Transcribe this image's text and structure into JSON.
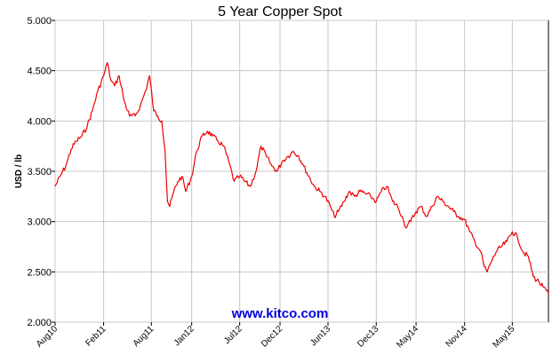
{
  "chart_data": {
    "type": "line",
    "title": "5 Year Copper Spot",
    "ylabel": "USD / lb",
    "xlabel": "",
    "ylim": [
      2.0,
      5.0
    ],
    "xlim": [
      "2010-08-01",
      "2015-09-15"
    ],
    "yticks": [
      "2.000",
      "2.500",
      "3.000",
      "3.500",
      "4.000",
      "4.500",
      "5.000"
    ],
    "ytick_values": [
      2.0,
      2.5,
      3.0,
      3.5,
      4.0,
      4.5,
      5.0
    ],
    "xticks": [
      {
        "label": "Aug10",
        "date": "2010-08-01"
      },
      {
        "label": "Feb11",
        "date": "2011-02-01"
      },
      {
        "label": "Aug11",
        "date": "2011-08-01"
      },
      {
        "label": "Jan12",
        "date": "2012-01-01"
      },
      {
        "label": "Jul12",
        "date": "2012-07-01"
      },
      {
        "label": "Dec12",
        "date": "2012-12-01"
      },
      {
        "label": "Jun13",
        "date": "2013-06-01"
      },
      {
        "label": "Dec13",
        "date": "2013-12-01"
      },
      {
        "label": "May14",
        "date": "2014-05-01"
      },
      {
        "label": "Nov14",
        "date": "2014-11-01"
      },
      {
        "label": "May15",
        "date": "2015-05-01"
      }
    ],
    "grid": true,
    "watermark": "www.kitco.com",
    "series": [
      {
        "color": "#ee0000",
        "x": [
          "2010-08-01",
          "2010-08-20",
          "2010-09-10",
          "2010-10-01",
          "2010-10-20",
          "2010-11-10",
          "2010-12-01",
          "2010-12-20",
          "2011-01-10",
          "2011-02-01",
          "2011-02-15",
          "2011-03-01",
          "2011-03-15",
          "2011-04-01",
          "2011-04-20",
          "2011-05-10",
          "2011-06-01",
          "2011-06-20",
          "2011-07-10",
          "2011-07-25",
          "2011-08-10",
          "2011-08-25",
          "2011-09-10",
          "2011-09-22",
          "2011-10-01",
          "2011-10-10",
          "2011-10-25",
          "2011-11-10",
          "2011-11-25",
          "2011-12-10",
          "2012-01-01",
          "2012-01-20",
          "2012-02-10",
          "2012-03-01",
          "2012-03-20",
          "2012-04-10",
          "2012-05-01",
          "2012-05-20",
          "2012-06-10",
          "2012-07-01",
          "2012-07-20",
          "2012-08-10",
          "2012-09-01",
          "2012-09-20",
          "2012-10-10",
          "2012-11-01",
          "2012-11-20",
          "2012-12-10",
          "2013-01-01",
          "2013-01-20",
          "2013-02-10",
          "2013-03-01",
          "2013-03-20",
          "2013-04-10",
          "2013-05-01",
          "2013-05-20",
          "2013-06-10",
          "2013-06-25",
          "2013-07-10",
          "2013-08-01",
          "2013-08-20",
          "2013-09-10",
          "2013-10-01",
          "2013-10-20",
          "2013-11-10",
          "2013-12-01",
          "2013-12-20",
          "2014-01-10",
          "2014-02-01",
          "2014-02-20",
          "2014-03-10",
          "2014-03-20",
          "2014-04-10",
          "2014-05-01",
          "2014-05-20",
          "2014-06-10",
          "2014-07-01",
          "2014-07-20",
          "2014-08-10",
          "2014-09-01",
          "2014-09-20",
          "2014-10-10",
          "2014-11-01",
          "2014-11-20",
          "2014-12-10",
          "2015-01-01",
          "2015-01-15",
          "2015-01-26",
          "2015-02-10",
          "2015-03-01",
          "2015-03-20",
          "2015-04-10",
          "2015-05-01",
          "2015-05-20",
          "2015-06-10",
          "2015-07-01",
          "2015-07-20",
          "2015-08-10",
          "2015-08-25",
          "2015-09-15"
        ],
        "y": [
          3.35,
          3.45,
          3.55,
          3.72,
          3.8,
          3.85,
          3.95,
          4.1,
          4.3,
          4.45,
          4.58,
          4.4,
          4.35,
          4.45,
          4.2,
          4.05,
          4.05,
          4.15,
          4.3,
          4.45,
          4.1,
          4.05,
          4.0,
          3.7,
          3.2,
          3.15,
          3.3,
          3.4,
          3.45,
          3.3,
          3.45,
          3.7,
          3.85,
          3.9,
          3.85,
          3.8,
          3.75,
          3.6,
          3.4,
          3.45,
          3.4,
          3.35,
          3.5,
          3.75,
          3.65,
          3.55,
          3.5,
          3.6,
          3.65,
          3.7,
          3.65,
          3.55,
          3.45,
          3.35,
          3.3,
          3.25,
          3.15,
          3.05,
          3.1,
          3.2,
          3.3,
          3.25,
          3.3,
          3.28,
          3.25,
          3.2,
          3.3,
          3.35,
          3.2,
          3.15,
          3.05,
          2.95,
          3.0,
          3.1,
          3.15,
          3.05,
          3.15,
          3.25,
          3.2,
          3.15,
          3.1,
          3.05,
          3.02,
          2.9,
          2.8,
          2.7,
          2.55,
          2.5,
          2.6,
          2.7,
          2.75,
          2.8,
          2.9,
          2.85,
          2.7,
          2.65,
          2.45,
          2.4,
          2.35,
          2.28
        ]
      }
    ]
  }
}
